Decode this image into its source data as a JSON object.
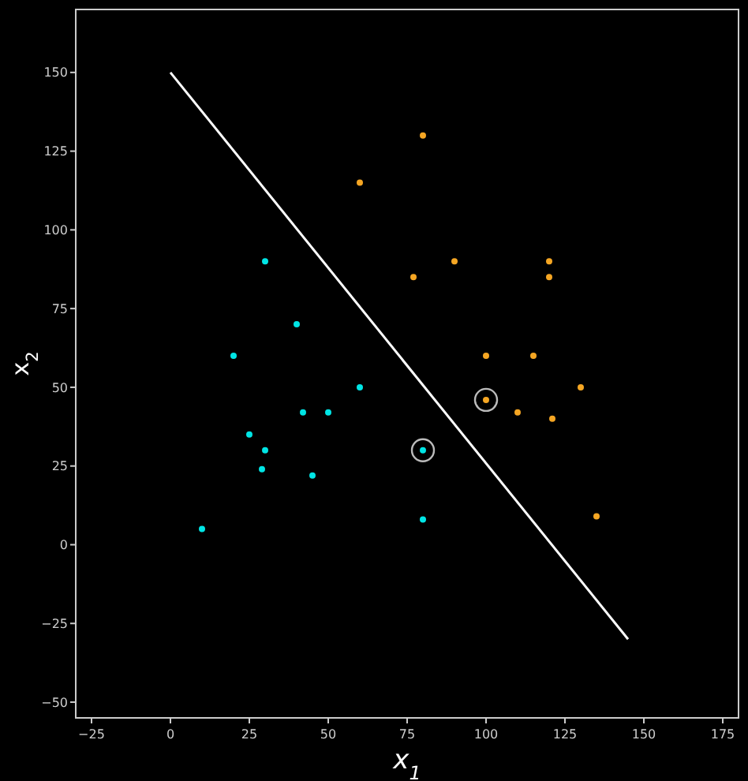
{
  "chart_data": {
    "type": "scatter",
    "xlabel": "x$_{1}$",
    "ylabel": "x$_{2}$",
    "xlim": [
      -30,
      180
    ],
    "ylim": [
      -55,
      170
    ],
    "xticks": [
      -25,
      0,
      25,
      50,
      75,
      100,
      125,
      150,
      175
    ],
    "yticks": [
      -50,
      -25,
      0,
      25,
      50,
      75,
      100,
      125,
      150
    ],
    "grid": false,
    "series": [
      {
        "color": "#00e5e5",
        "marker": "circle",
        "x": [
          10,
          20,
          25,
          29,
          30,
          30,
          40,
          42,
          45,
          50,
          60,
          80,
          80
        ],
        "values": [
          5,
          60,
          35,
          24,
          30,
          90,
          70,
          42,
          22,
          42,
          50,
          30,
          8
        ]
      },
      {
        "color": "#f5a623",
        "marker": "circle",
        "x": [
          60,
          77,
          80,
          90,
          100,
          100,
          110,
          115,
          120,
          120,
          121,
          130,
          135
        ],
        "values": [
          115,
          85,
          130,
          90,
          60,
          46,
          42,
          60,
          90,
          85,
          40,
          50,
          9
        ]
      },
      {
        "type": "bubble",
        "color": "#bbbbbb",
        "x": [
          80,
          100
        ],
        "values": [
          30,
          46
        ],
        "sizes": [
          1,
          1
        ]
      },
      {
        "type": "line",
        "color": "#ffffff",
        "x": [
          0,
          145
        ],
        "values": [
          150,
          -30
        ],
        "line_style": "solid",
        "marker": "none"
      }
    ]
  }
}
